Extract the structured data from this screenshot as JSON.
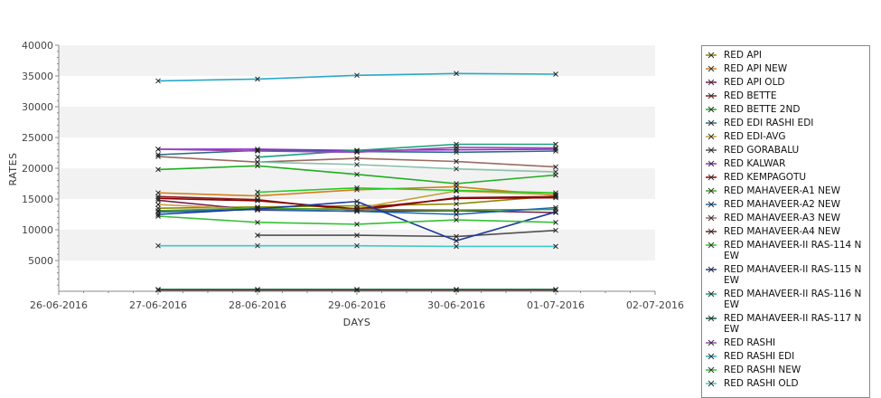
{
  "chart_data": {
    "type": "line",
    "title": "",
    "xlabel": "DAYS",
    "ylabel": "RATES",
    "ylim": [
      0,
      40000
    ],
    "yticks": [
      5000,
      10000,
      15000,
      20000,
      25000,
      30000,
      35000,
      40000
    ],
    "xlim": [
      "26-06-2016",
      "02-07-2016"
    ],
    "x_ticks": [
      "26-06-2016",
      "27-06-2016",
      "28-06-2016",
      "29-06-2016",
      "30-06-2016",
      "01-07-2016",
      "02-07-2016"
    ],
    "x": [
      "27-06-2016",
      "28-06-2016",
      "29-06-2016",
      "30-06-2016",
      "01-07-2016"
    ],
    "grid": "horizontal-bands",
    "legend_position": "right",
    "series": [
      {
        "name": "RED API",
        "color": "#8a8a00",
        "values": [
          13500,
          13700,
          13900,
          14200,
          15500
        ]
      },
      {
        "name": "RED API NEW",
        "color": "#d4801a",
        "values": [
          16000,
          15500,
          16500,
          17000,
          15600
        ]
      },
      {
        "name": "RED API OLD",
        "color": "#7a1a4a",
        "values": [
          14800,
          13200,
          13000,
          13100,
          12800
        ]
      },
      {
        "name": "RED BETTE",
        "color": "#8b1a1a",
        "values": [
          15400,
          14900,
          13100,
          15200,
          15400
        ]
      },
      {
        "name": "RED BETTE 2ND",
        "color": "#1fae1f",
        "values": [
          19800,
          20400,
          19000,
          17500,
          18900
        ]
      },
      {
        "name": "RED EDI RASHI EDI",
        "color": "#2a6a8a",
        "values": [
          22200,
          22900,
          22700,
          22600,
          22800
        ]
      },
      {
        "name": "RED EDI-AVG",
        "color": "#c8a040",
        "values": [
          14100,
          13300,
          13500,
          16300,
          15700
        ]
      },
      {
        "name": "RED GORABALU",
        "color": "#505050",
        "values": [
          null,
          9100,
          9100,
          8900,
          9900
        ]
      },
      {
        "name": "RED KALWAR",
        "color": "#8a2ad0",
        "values": [
          23100,
          23100,
          22900,
          23000,
          23100
        ]
      },
      {
        "name": "RED KEMPAGOTU",
        "color": "#8b0000",
        "values": [
          15100,
          14700,
          13400,
          15100,
          15200
        ]
      },
      {
        "name": "RED MAHAVEER-A1 NEW",
        "color": "#4aa02a",
        "values": [
          13100,
          13500,
          13300,
          13200,
          13300
        ]
      },
      {
        "name": "RED MAHAVEER-A2 NEW",
        "color": "#1a6ab0",
        "values": [
          12900,
          13300,
          13000,
          12500,
          13600
        ]
      },
      {
        "name": "RED MAHAVEER-A3 NEW",
        "color": "#9a6a60",
        "values": [
          21900,
          21000,
          21600,
          21100,
          20200
        ]
      },
      {
        "name": "RED MAHAVEER-A4 NEW",
        "color": "#7a1a1a",
        "values": [
          200,
          200,
          200,
          200,
          200
        ]
      },
      {
        "name": "RED MAHAVEER-II RAS-114 NEW",
        "color": "#22cc22",
        "values": [
          null,
          16100,
          16800,
          16400,
          16000
        ]
      },
      {
        "name": "RED MAHAVEER-II RAS-115 NEW",
        "color": "#1a3a9a",
        "values": [
          12500,
          13400,
          14600,
          8200,
          12900
        ]
      },
      {
        "name": "RED MAHAVEER-II RAS-116 NEW",
        "color": "#1aa07a",
        "values": [
          null,
          21800,
          22900,
          23900,
          23900
        ]
      },
      {
        "name": "RED MAHAVEER-II RAS-117 NEW",
        "color": "#0a5a3a",
        "values": [
          300,
          300,
          300,
          300,
          300
        ]
      },
      {
        "name": "RED RASHI",
        "color": "#9a4ab0",
        "values": [
          23100,
          22800,
          22600,
          23400,
          23300
        ]
      },
      {
        "name": "RED RASHI EDI",
        "color": "#2aa8c8",
        "values": [
          34200,
          34500,
          35100,
          35400,
          35300
        ]
      },
      {
        "name": "RED RASHI NEW",
        "color": "#35c035",
        "values": [
          12200,
          11200,
          10900,
          11600,
          11200
        ]
      },
      {
        "name": "RED RASHI OLD",
        "color": "#40c8c8",
        "values": [
          7400,
          7400,
          7400,
          7300,
          7300
        ]
      },
      {
        "name": "",
        "color": "#8ac0a8",
        "values": [
          null,
          21000,
          20600,
          19900,
          19400
        ]
      }
    ]
  }
}
